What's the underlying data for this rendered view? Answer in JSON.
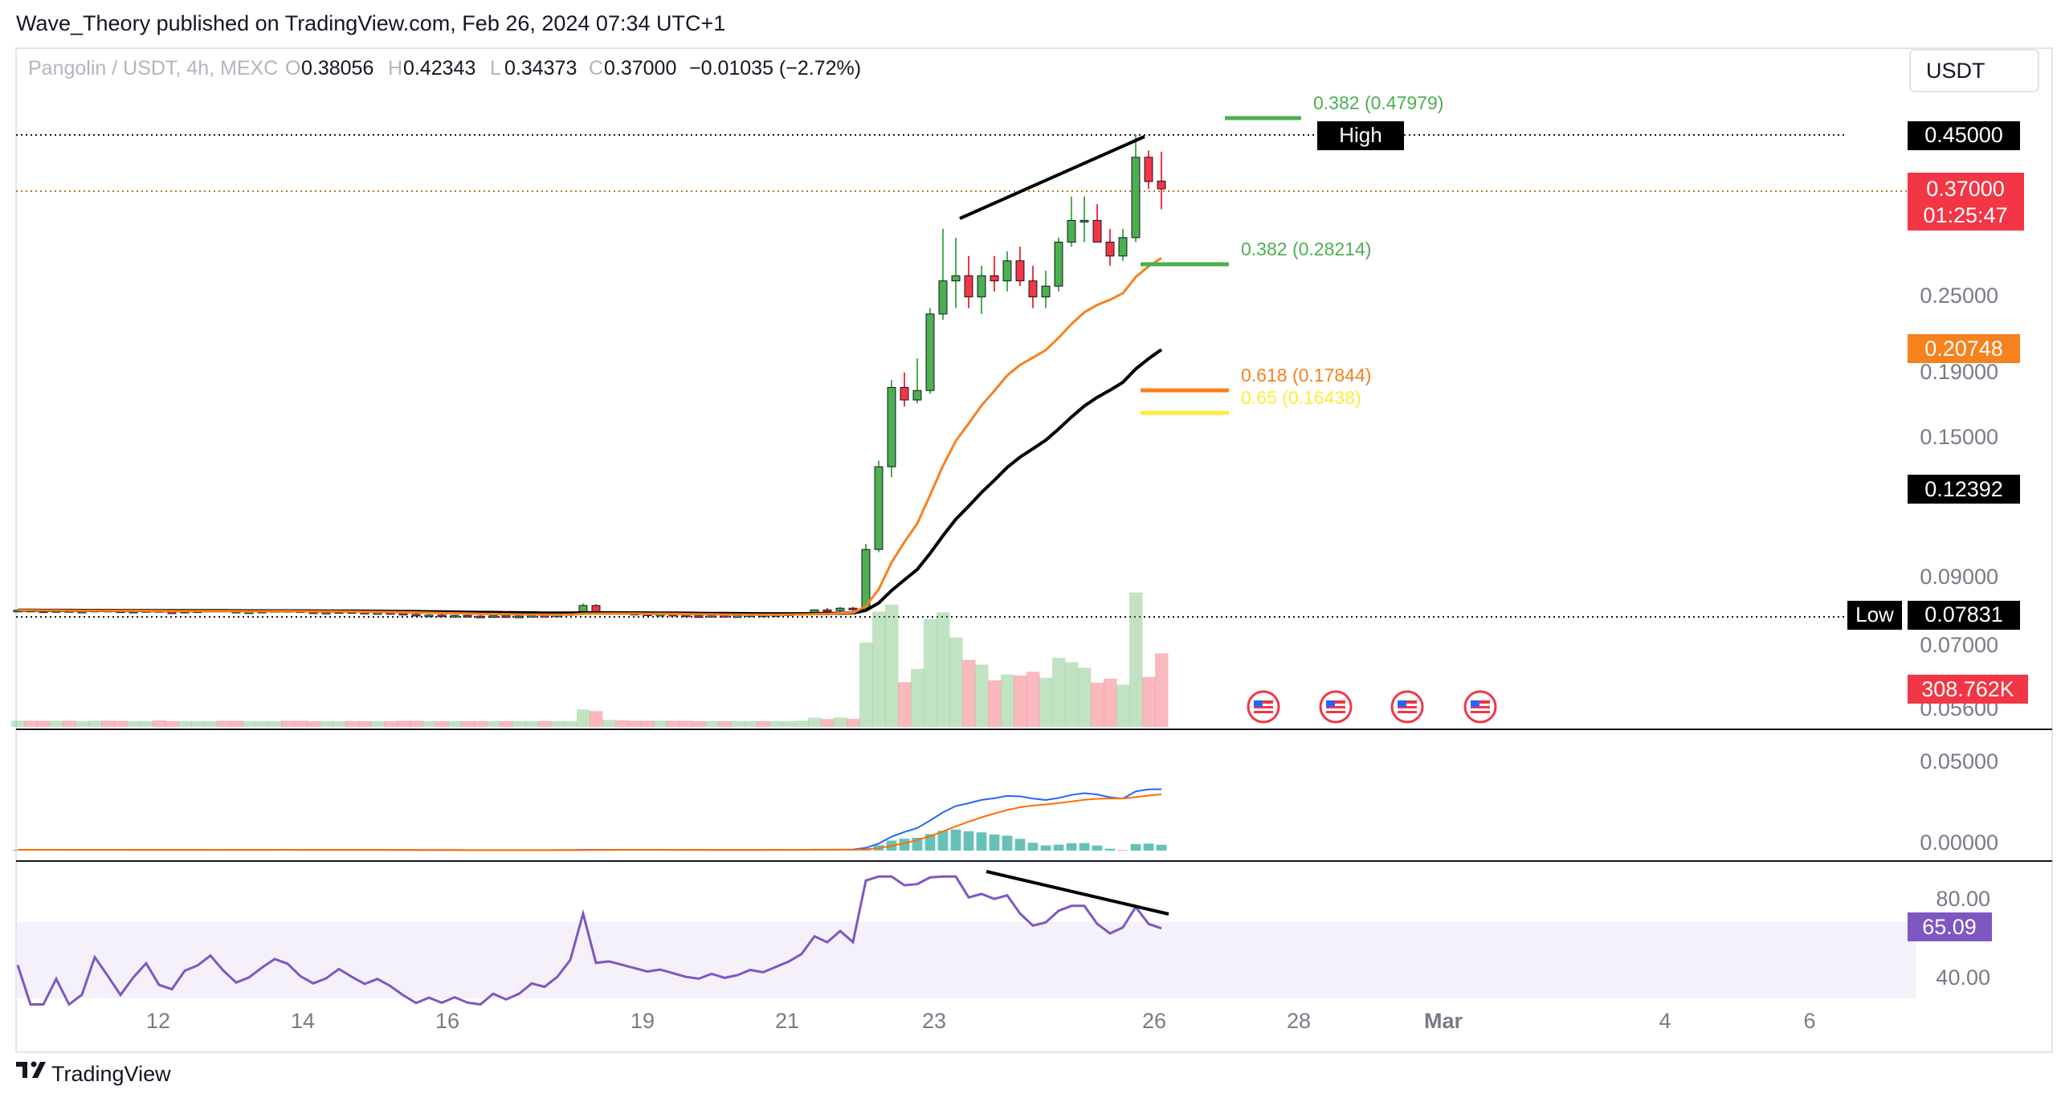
{
  "header": {
    "published": "Wave_Theory published on TradingView.com, Feb 26, 2024 07:34 UTC+1",
    "symbol": "Pangolin / USDT, 4h, MEXC",
    "ohlc": {
      "o_label": "O",
      "o": "0.38056",
      "h_label": "H",
      "h": "0.42343",
      "l_label": "L",
      "l": "0.34373",
      "c_label": "C",
      "c": "0.37000",
      "change": "−0.01035 (−2.72%)"
    },
    "currency_button": "USDT"
  },
  "footer": {
    "brand": "TradingView"
  },
  "colors": {
    "up": "#4caf50",
    "down": "#f23645",
    "ema_fast": "#f7811e",
    "ema_slow": "#000000",
    "rsi": "#7e57c2",
    "macd": "#2962ff",
    "signal": "#ff6d00",
    "fib_green": "#4caf50",
    "fib_orange": "#f7811e",
    "fib_yellow": "#ffeb3b"
  },
  "icons": [
    "us-flag-icon",
    "us-flag-icon",
    "us-flag-icon",
    "us-flag-icon"
  ],
  "chart_data": [
    {
      "type": "candlestick",
      "title": "Pangolin / USDT, 4h, MEXC",
      "ylim": [
        0.06,
        0.5
      ],
      "scale": "log",
      "x_ticks": [
        "12",
        "14",
        "16",
        "19",
        "21",
        "23",
        "26",
        "28",
        "Mar",
        "4",
        "6"
      ],
      "y_ticks": [
        "0.25000",
        "0.19000",
        "0.15000",
        "0.09000",
        "0.07000",
        "0.05600"
      ],
      "price_labels": {
        "high_label": "High",
        "high": "0.45000",
        "low_label": "Low",
        "low": "0.07831",
        "last": "0.37000",
        "countdown": "01:25:47",
        "ema_fast": "0.20748",
        "ema_slow": "0.12392",
        "volume": "308.762K"
      },
      "fib_levels": [
        {
          "label": "0.382 (0.47979)",
          "value": 0.47979,
          "color": "green"
        },
        {
          "label": "0.382 (0.28214)",
          "value": 0.28214,
          "color": "green"
        },
        {
          "label": "0.618 (0.17844)",
          "value": 0.17844,
          "color": "orange"
        },
        {
          "label": "0.65 (0.16438)",
          "value": 0.16438,
          "color": "yellow"
        }
      ],
      "candles_approx": [
        [
          0.08,
          0.0804,
          0.0797,
          0.0802
        ],
        [
          0.0802,
          0.0805,
          0.0798,
          0.08
        ],
        [
          0.08,
          0.0803,
          0.0796,
          0.0799
        ],
        [
          0.0799,
          0.0803,
          0.0796,
          0.0801
        ],
        [
          0.0801,
          0.0804,
          0.0797,
          0.0798
        ],
        [
          0.0798,
          0.0801,
          0.0795,
          0.0799
        ],
        [
          0.0799,
          0.0804,
          0.0797,
          0.0802
        ],
        [
          0.0802,
          0.0806,
          0.0799,
          0.08
        ],
        [
          0.08,
          0.0803,
          0.0796,
          0.0797
        ],
        [
          0.0797,
          0.0801,
          0.0795,
          0.0799
        ],
        [
          0.0799,
          0.0803,
          0.0797,
          0.0801
        ],
        [
          0.0801,
          0.0804,
          0.0796,
          0.0797
        ],
        [
          0.0797,
          0.08,
          0.0794,
          0.0796
        ],
        [
          0.0796,
          0.08,
          0.0794,
          0.0799
        ],
        [
          0.0799,
          0.0803,
          0.0797,
          0.08
        ],
        [
          0.08,
          0.0804,
          0.0798,
          0.0802
        ],
        [
          0.0802,
          0.0805,
          0.0798,
          0.0799
        ],
        [
          0.0799,
          0.0802,
          0.0795,
          0.0796
        ],
        [
          0.0796,
          0.0799,
          0.0793,
          0.0797
        ],
        [
          0.0797,
          0.0801,
          0.0795,
          0.0799
        ],
        [
          0.0799,
          0.0803,
          0.0797,
          0.0801
        ],
        [
          0.0801,
          0.0805,
          0.0798,
          0.08
        ],
        [
          0.08,
          0.0803,
          0.0796,
          0.0797
        ],
        [
          0.0797,
          0.08,
          0.0794,
          0.0795
        ],
        [
          0.0795,
          0.0798,
          0.0792,
          0.0796
        ],
        [
          0.0796,
          0.08,
          0.0794,
          0.0798
        ],
        [
          0.0798,
          0.0801,
          0.0795,
          0.0796
        ],
        [
          0.0796,
          0.0799,
          0.0793,
          0.0794
        ],
        [
          0.0794,
          0.0797,
          0.0791,
          0.0795
        ],
        [
          0.0795,
          0.0798,
          0.0792,
          0.0793
        ],
        [
          0.0793,
          0.0796,
          0.0789,
          0.079
        ],
        [
          0.079,
          0.0793,
          0.0786,
          0.0787
        ],
        [
          0.0787,
          0.079,
          0.0784,
          0.0788
        ],
        [
          0.0788,
          0.0791,
          0.0785,
          0.0786
        ],
        [
          0.0786,
          0.0789,
          0.0783,
          0.0787
        ],
        [
          0.0787,
          0.079,
          0.0784,
          0.0785
        ],
        [
          0.0785,
          0.0788,
          0.0782,
          0.0784
        ],
        [
          0.0784,
          0.0787,
          0.0781,
          0.0786
        ],
        [
          0.0786,
          0.0789,
          0.0783,
          0.0784
        ],
        [
          0.0784,
          0.0787,
          0.0781,
          0.0785
        ],
        [
          0.0785,
          0.0788,
          0.0782,
          0.0787
        ],
        [
          0.0787,
          0.079,
          0.0784,
          0.0786
        ],
        [
          0.0786,
          0.0789,
          0.0783,
          0.0788
        ],
        [
          0.0788,
          0.0791,
          0.0785,
          0.0792
        ],
        [
          0.0792,
          0.0822,
          0.0788,
          0.0816
        ],
        [
          0.0816,
          0.082,
          0.079,
          0.0794
        ],
        [
          0.0794,
          0.0798,
          0.0789,
          0.0795
        ],
        [
          0.0795,
          0.0799,
          0.0791,
          0.0793
        ],
        [
          0.0793,
          0.0796,
          0.0789,
          0.0791
        ],
        [
          0.0791,
          0.0794,
          0.0787,
          0.0789
        ],
        [
          0.0789,
          0.0792,
          0.0785,
          0.079
        ],
        [
          0.079,
          0.0793,
          0.0786,
          0.0788
        ],
        [
          0.0788,
          0.0791,
          0.0784,
          0.0786
        ],
        [
          0.0786,
          0.0789,
          0.0783,
          0.0785
        ],
        [
          0.0785,
          0.0788,
          0.0782,
          0.0787
        ],
        [
          0.0787,
          0.079,
          0.0784,
          0.0785
        ],
        [
          0.0785,
          0.0788,
          0.0782,
          0.0786
        ],
        [
          0.0786,
          0.0789,
          0.0783,
          0.0788
        ],
        [
          0.0788,
          0.0791,
          0.0785,
          0.0787
        ],
        [
          0.0787,
          0.079,
          0.0784,
          0.0789
        ],
        [
          0.0789,
          0.0792,
          0.0786,
          0.0791
        ],
        [
          0.0791,
          0.0795,
          0.0788,
          0.0794
        ],
        [
          0.0794,
          0.0805,
          0.0791,
          0.0803
        ],
        [
          0.0803,
          0.0809,
          0.0798,
          0.0801
        ],
        [
          0.0801,
          0.0812,
          0.0797,
          0.0808
        ],
        [
          0.0808,
          0.0812,
          0.08,
          0.0804
        ],
        [
          0.0804,
          0.102,
          0.0802,
          0.1
        ],
        [
          0.1,
          0.138,
          0.099,
          0.135
        ],
        [
          0.135,
          0.185,
          0.13,
          0.18
        ],
        [
          0.18,
          0.19,
          0.168,
          0.172
        ],
        [
          0.172,
          0.2,
          0.17,
          0.178
        ],
        [
          0.178,
          0.24,
          0.176,
          0.235
        ],
        [
          0.235,
          0.32,
          0.23,
          0.265
        ],
        [
          0.265,
          0.31,
          0.24,
          0.27
        ],
        [
          0.27,
          0.29,
          0.24,
          0.25
        ],
        [
          0.25,
          0.28,
          0.235,
          0.27
        ],
        [
          0.27,
          0.29,
          0.255,
          0.265
        ],
        [
          0.265,
          0.295,
          0.255,
          0.285
        ],
        [
          0.285,
          0.3,
          0.26,
          0.265
        ],
        [
          0.265,
          0.28,
          0.24,
          0.25
        ],
        [
          0.25,
          0.275,
          0.24,
          0.26
        ],
        [
          0.26,
          0.31,
          0.255,
          0.305
        ],
        [
          0.305,
          0.36,
          0.3,
          0.33
        ],
        [
          0.33,
          0.36,
          0.305,
          0.33
        ],
        [
          0.33,
          0.35,
          0.31,
          0.305
        ],
        [
          0.305,
          0.32,
          0.28,
          0.29
        ],
        [
          0.29,
          0.32,
          0.285,
          0.31
        ],
        [
          0.31,
          0.45,
          0.305,
          0.415
        ],
        [
          0.415,
          0.425,
          0.37,
          0.38
        ],
        [
          0.3806,
          0.4234,
          0.3437,
          0.37
        ]
      ]
    },
    {
      "type": "line",
      "title": "",
      "y_ticks": [
        "0.05000",
        "0.00000"
      ],
      "series": [
        {
          "values": []
        },
        {
          "values": []
        }
      ]
    },
    {
      "type": "line",
      "title": "",
      "ylim": [
        30,
        95
      ],
      "y_ticks": [
        "80.00",
        "40.00"
      ],
      "last_value": "65.09",
      "series": [
        {
          "values": []
        }
      ]
    }
  ]
}
